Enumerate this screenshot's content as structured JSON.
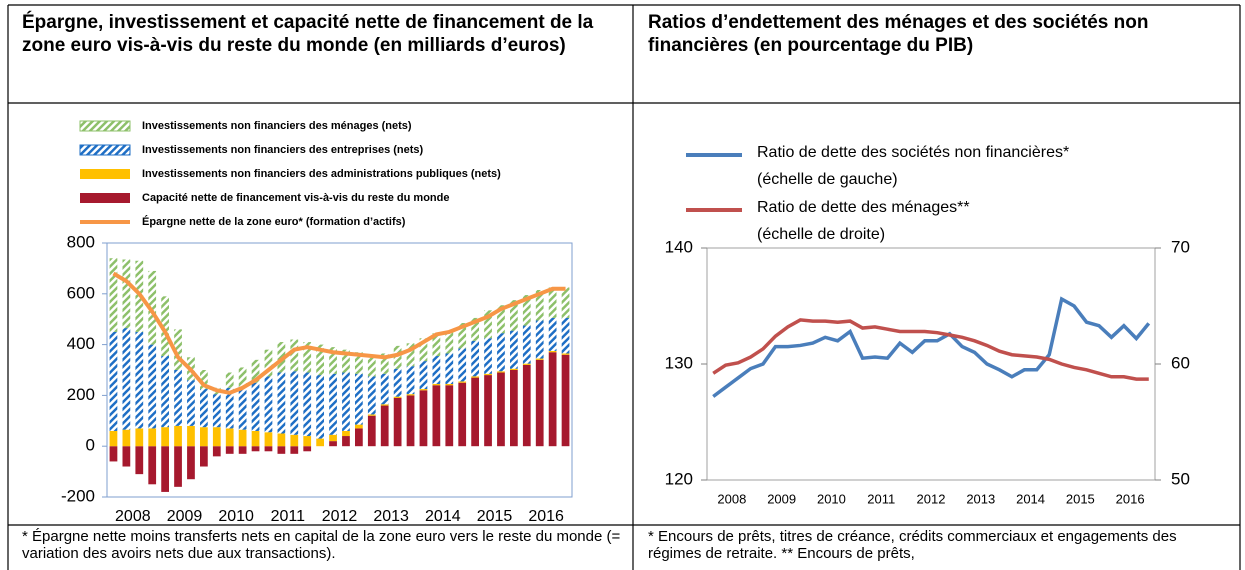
{
  "header": {
    "left_title": "Épargne, investissement et capacité nette de financement de la zone euro vis-à-vis du reste du monde (en milliards d’euros)",
    "right_title": "Ratios d’endettement des ménages et des sociétés non financières (en pourcentage du PIB)"
  },
  "chart_data": [
    {
      "type": "bar",
      "stacked": true,
      "grid": false,
      "categories": [
        "2008",
        null,
        null,
        null,
        "2009",
        null,
        null,
        null,
        "2010",
        null,
        null,
        null,
        "2011",
        null,
        null,
        null,
        "2012",
        null,
        null,
        null,
        "2013",
        null,
        null,
        null,
        "2014",
        null,
        null,
        null,
        "2015",
        null,
        null,
        null,
        "2016",
        null,
        null,
        null
      ],
      "ylim": [
        -200,
        800
      ],
      "yticks": [
        -200,
        0,
        200,
        400,
        600,
        800
      ],
      "series": [
        {
          "name": "Investissements non financiers des ménages (nets)",
          "type": "bar",
          "pattern": "hatch",
          "color": "#8dc06a",
          "values": [
            290,
            270,
            280,
            290,
            235,
            160,
            90,
            75,
            25,
            60,
            75,
            90,
            105,
            120,
            125,
            120,
            120,
            105,
            90,
            85,
            80,
            80,
            90,
            90,
            90,
            90,
            90,
            100,
            90,
            110,
            110,
            120,
            120,
            120,
            120,
            120
          ]
        },
        {
          "name": "Investissements non financiers des entreprises (nets)",
          "type": "bar",
          "pattern": "hatch",
          "color": "#1f6fc5",
          "values": [
            390,
            400,
            380,
            330,
            280,
            220,
            180,
            150,
            130,
            160,
            170,
            190,
            220,
            240,
            250,
            250,
            250,
            240,
            230,
            200,
            150,
            120,
            110,
            110,
            110,
            110,
            120,
            130,
            140,
            140,
            150,
            150,
            150,
            150,
            130,
            140
          ]
        },
        {
          "name": "Investissements non financiers des administrations publiques (nets)",
          "type": "bar",
          "color": "#ffc000",
          "values": [
            60,
            65,
            70,
            70,
            75,
            80,
            80,
            75,
            75,
            70,
            65,
            60,
            55,
            50,
            45,
            40,
            30,
            25,
            20,
            15,
            5,
            5,
            5,
            5,
            5,
            5,
            5,
            5,
            5,
            5,
            5,
            5,
            5,
            5,
            5,
            5
          ]
        },
        {
          "name": "Capacité nette de financement vis-à-vis du reste du monde",
          "type": "bar",
          "color": "#a6192e",
          "values": [
            -60,
            -80,
            -110,
            -150,
            -180,
            -160,
            -130,
            -80,
            -40,
            -30,
            -30,
            -20,
            -20,
            -30,
            -30,
            -20,
            0,
            20,
            40,
            70,
            120,
            160,
            190,
            200,
            220,
            240,
            240,
            250,
            270,
            280,
            290,
            300,
            320,
            340,
            370,
            360
          ]
        },
        {
          "name": "Épargne nette de la zone euro* (formation d’actifs)",
          "type": "line",
          "color": "#f79646",
          "values": [
            680,
            650,
            600,
            530,
            450,
            350,
            300,
            240,
            220,
            210,
            230,
            260,
            300,
            340,
            380,
            390,
            380,
            370,
            365,
            360,
            355,
            350,
            360,
            380,
            410,
            440,
            450,
            470,
            490,
            510,
            540,
            560,
            580,
            600,
            620,
            620
          ]
        }
      ]
    },
    {
      "type": "line",
      "grid": false,
      "categories": [
        "2008",
        null,
        null,
        null,
        "2009",
        null,
        null,
        null,
        "2010",
        null,
        null,
        null,
        "2011",
        null,
        null,
        null,
        "2012",
        null,
        null,
        null,
        "2013",
        null,
        null,
        null,
        "2014",
        null,
        null,
        null,
        "2015",
        null,
        null,
        null,
        "2016",
        null,
        null,
        null
      ],
      "ylim": [
        120,
        140
      ],
      "yticks": [
        120,
        130,
        140
      ],
      "y2lim": [
        50,
        70
      ],
      "y2ticks": [
        50,
        60,
        70
      ],
      "series": [
        {
          "name": "Ratio de dette des sociétés non financières*",
          "legend_note": "(échelle de gauche)",
          "color": "#4a7ebb",
          "values": [
            127.2,
            128,
            128.8,
            129.6,
            130,
            131.5,
            131.5,
            131.6,
            131.8,
            132.3,
            132,
            132.8,
            130.5,
            130.6,
            130.5,
            131.8,
            131,
            132,
            132,
            132.6,
            131.5,
            131,
            130,
            129.5,
            128.9,
            129.5,
            129.5,
            130.8,
            135.6,
            135,
            133.6,
            133.3,
            132.3,
            133.3,
            132.2,
            133.5
          ]
        },
        {
          "name": "Ratio de dette des ménages**",
          "legend_note": "(échelle de droite)",
          "color": "#c0504d",
          "axis": "y2",
          "values": [
            59.2,
            59.9,
            60.1,
            60.6,
            61.3,
            62.4,
            63.2,
            63.8,
            63.7,
            63.7,
            63.6,
            63.7,
            63.1,
            63.2,
            63.0,
            62.8,
            62.8,
            62.8,
            62.7,
            62.5,
            62.3,
            62.0,
            61.6,
            61.1,
            60.8,
            60.7,
            60.6,
            60.4,
            60.0,
            59.7,
            59.5,
            59.2,
            58.9,
            58.9,
            58.7,
            58.7
          ]
        }
      ]
    }
  ],
  "footnotes": [
    "* Épargne nette moins transferts nets en capital de la zone euro vers le reste du monde (= variation des avoirs nets due aux transactions).",
    "* Encours de prêts, titres de créance, crédits commerciaux et engagements des régimes de retraite. ** Encours de prêts,"
  ]
}
